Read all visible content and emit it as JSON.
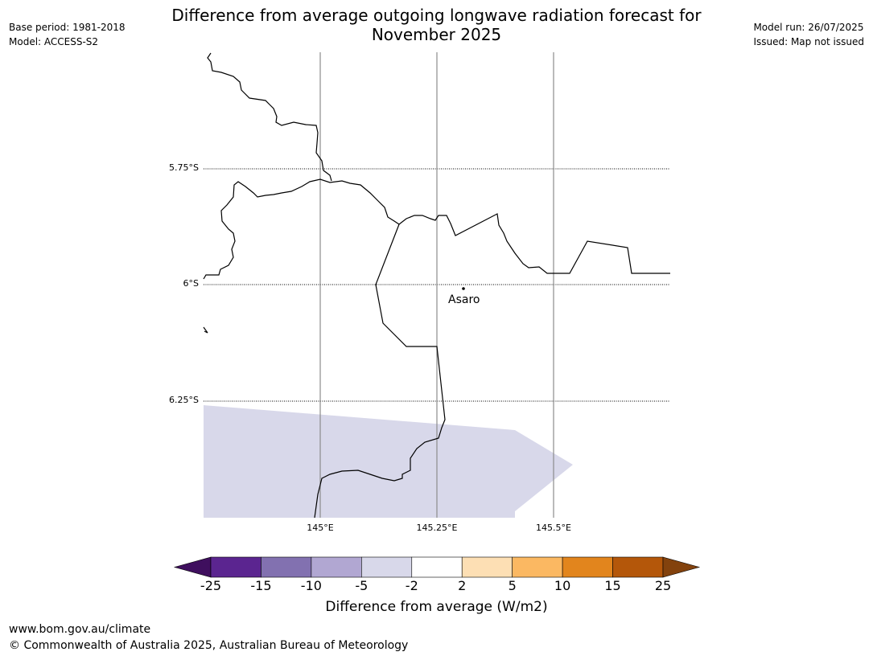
{
  "title_line1": "Difference from average outgoing longwave radiation forecast for",
  "title_line2": "November 2025",
  "meta_left": {
    "base_period": "Base period: 1981-2018",
    "model": "Model: ACCESS-S2"
  },
  "meta_right": {
    "model_run": "Model run: 26/07/2025",
    "issued": "Issued: Map not issued"
  },
  "map": {
    "latitude_labels": [
      "5.75°S",
      "6°S",
      "6.25°S"
    ],
    "longitude_labels": [
      "145°E",
      "145.25°E",
      "145.5°E"
    ],
    "place": {
      "name": "Asaro"
    },
    "anomaly_fill_color": "#d8d8ea",
    "anomaly_category": "-5 to -2"
  },
  "colorbar": {
    "title": "Difference from average (W/m2)",
    "tick_labels": [
      "-25",
      "-15",
      "-10",
      "-5",
      "-2",
      "2",
      "5",
      "10",
      "15",
      "25"
    ],
    "colors": [
      "#3f0f5e",
      "#5b2590",
      "#8271b0",
      "#b1a7d2",
      "#d8d8ea",
      "#ffffff",
      "#fddfb4",
      "#fbb862",
      "#e2851d",
      "#b4570a",
      "#83420d"
    ]
  },
  "footer": {
    "url": "www.bom.gov.au/climate",
    "copyright": "© Commonwealth of Australia 2025, Australian Bureau of Meteorology"
  }
}
